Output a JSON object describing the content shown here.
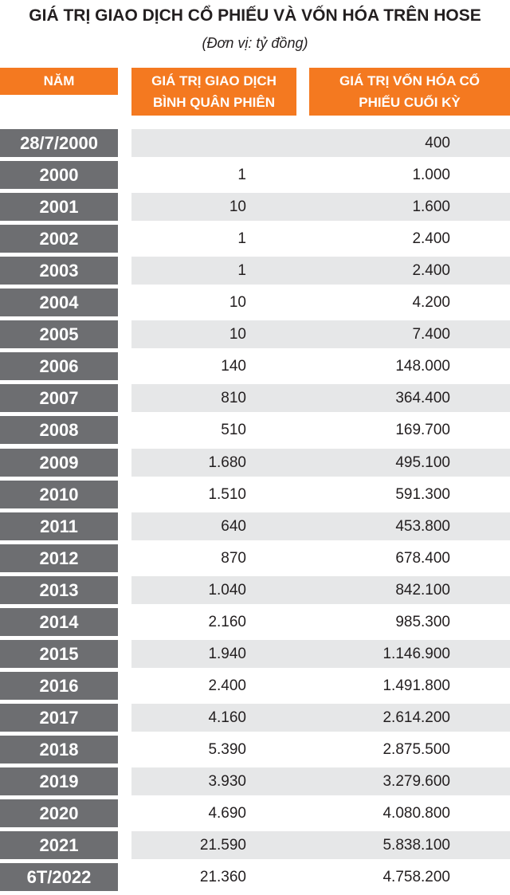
{
  "header": {
    "title": "GIÁ TRỊ GIAO DỊCH CỔ PHIẾU VÀ VỐN HÓA TRÊN HOSE",
    "subtitle": "(Đơn vị: tỷ đồng)"
  },
  "table": {
    "columns": [
      "NĂM",
      "GIÁ TRỊ GIAO DỊCH BÌNH QUÂN PHIÊN",
      "GIÁ TRỊ VỐN HÓA CỔ PHIẾU CUỐI KỲ"
    ],
    "rows": [
      [
        "28/7/2000",
        null,
        "400"
      ],
      [
        "2000",
        "1",
        "1.000"
      ],
      [
        "2001",
        "10",
        "1.600"
      ],
      [
        "2002",
        "1",
        "2.400"
      ],
      [
        "2003",
        "1",
        "2.400"
      ],
      [
        "2004",
        "10",
        "4.200"
      ],
      [
        "2005",
        "10",
        "7.400"
      ],
      [
        "2006",
        "140",
        "148.000"
      ],
      [
        "2007",
        "810",
        "364.400"
      ],
      [
        "2008",
        "510",
        "169.700"
      ],
      [
        "2009",
        "1.680",
        "495.100"
      ],
      [
        "2010",
        "1.510",
        "591.300"
      ],
      [
        "2011",
        "640",
        "453.800"
      ],
      [
        "2012",
        "870",
        "678.400"
      ],
      [
        "2013",
        "1.040",
        "842.100"
      ],
      [
        "2014",
        "2.160",
        "985.300"
      ],
      [
        "2015",
        "1.940",
        "1.146.900"
      ],
      [
        "2016",
        "2.400",
        "1.491.800"
      ],
      [
        "2017",
        "4.160",
        "2.614.200"
      ],
      [
        "2018",
        "5.390",
        "2.875.500"
      ],
      [
        "2019",
        "3.930",
        "3.279.600"
      ],
      [
        "2020",
        "4.690",
        "4.080.800"
      ],
      [
        "2021",
        "21.590",
        "5.838.100"
      ],
      [
        "6T/2022",
        "21.360",
        "4.758.200"
      ]
    ]
  }
}
